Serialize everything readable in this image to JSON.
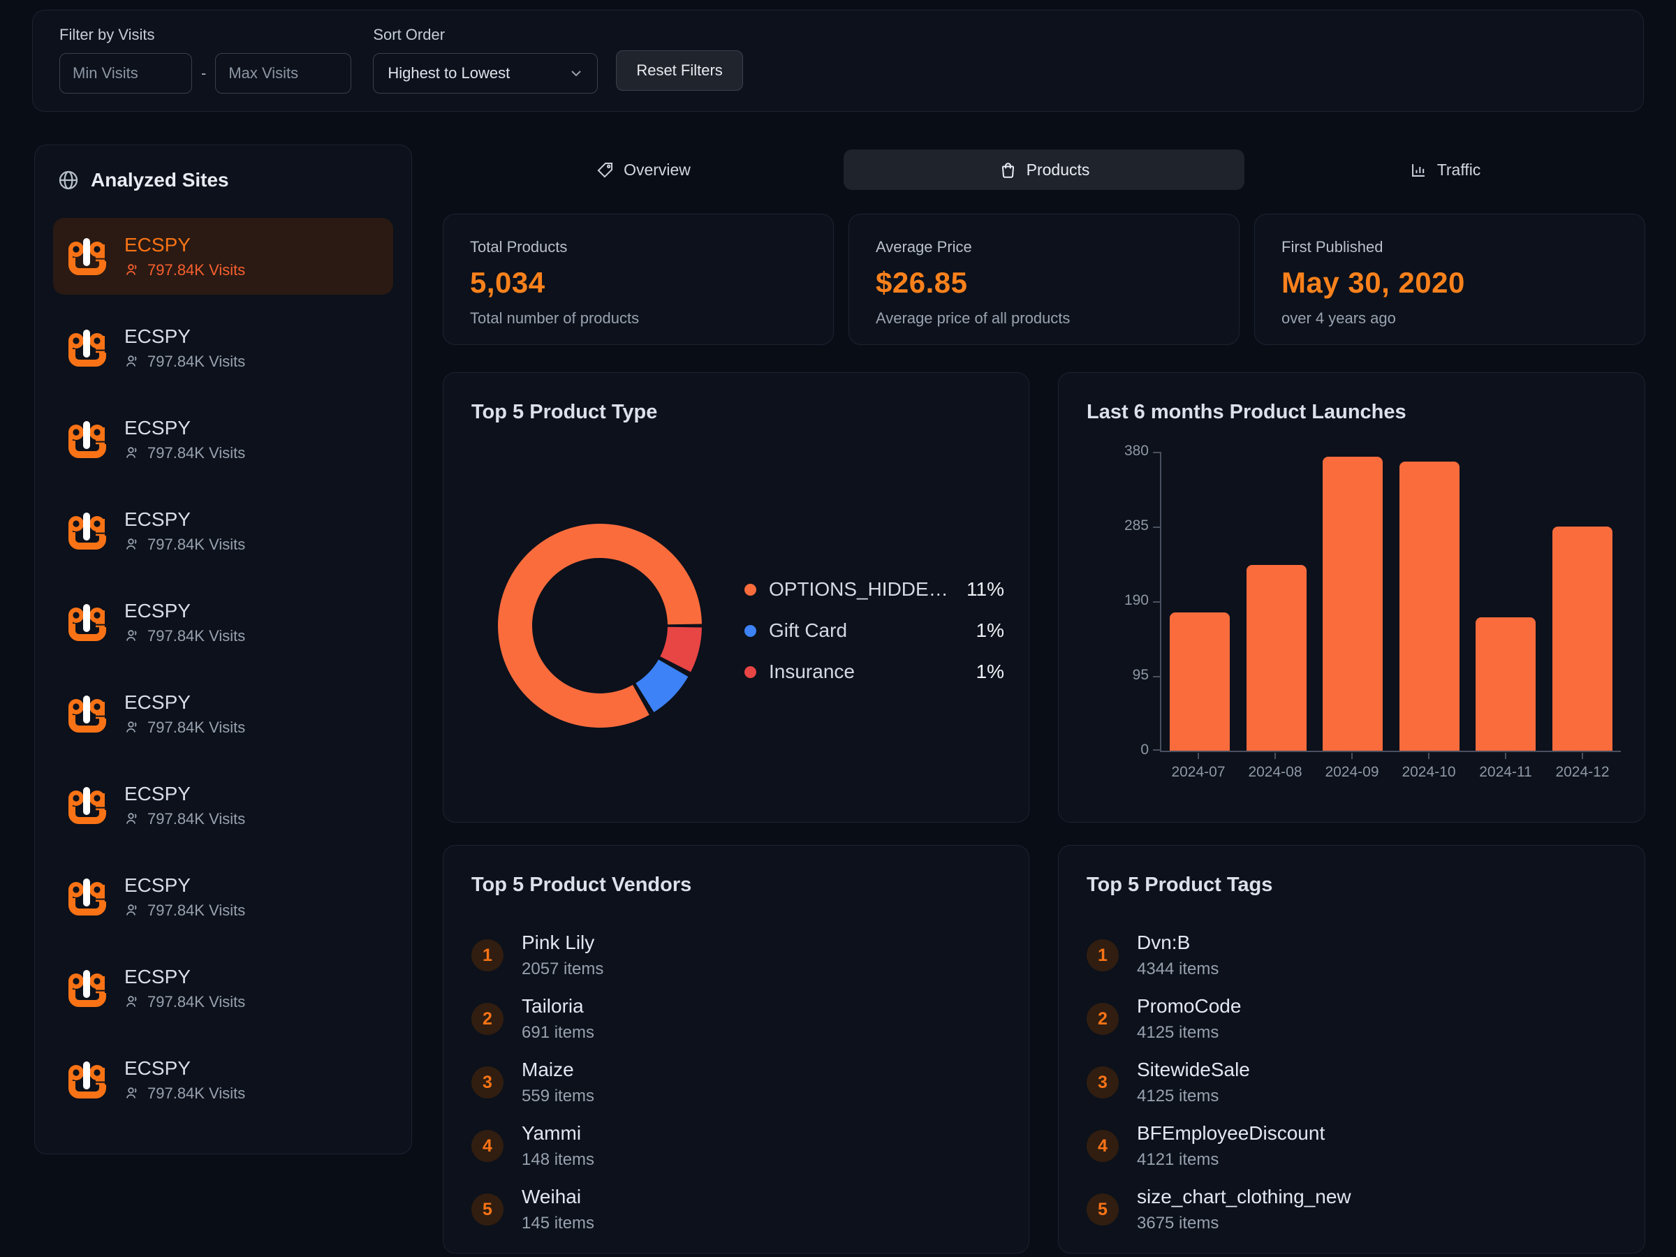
{
  "filter_bar": {
    "filter_label": "Filter by Visits",
    "min_placeholder": "Min Visits",
    "separator": "-",
    "max_placeholder": "Max Visits",
    "sort_label": "Sort Order",
    "sort_value": "Highest to Lowest",
    "reset_button": "Reset Filters"
  },
  "sidebar": {
    "title": "Analyzed Sites",
    "items": [
      {
        "name": "ECSPY",
        "visits": "797.84K Visits",
        "selected": true
      },
      {
        "name": "ECSPY",
        "visits": "797.84K Visits",
        "selected": false
      },
      {
        "name": "ECSPY",
        "visits": "797.84K Visits",
        "selected": false
      },
      {
        "name": "ECSPY",
        "visits": "797.84K Visits",
        "selected": false
      },
      {
        "name": "ECSPY",
        "visits": "797.84K Visits",
        "selected": false
      },
      {
        "name": "ECSPY",
        "visits": "797.84K Visits",
        "selected": false
      },
      {
        "name": "ECSPY",
        "visits": "797.84K Visits",
        "selected": false
      },
      {
        "name": "ECSPY",
        "visits": "797.84K Visits",
        "selected": false
      },
      {
        "name": "ECSPY",
        "visits": "797.84K Visits",
        "selected": false
      },
      {
        "name": "ECSPY",
        "visits": "797.84K Visits",
        "selected": false
      }
    ]
  },
  "tabs": [
    {
      "label": "Overview",
      "icon": "tag-icon",
      "selected": false
    },
    {
      "label": "Products",
      "icon": "shopping-bag-icon",
      "selected": true
    },
    {
      "label": "Traffic",
      "icon": "bar-chart-icon",
      "selected": false
    }
  ],
  "stats": [
    {
      "label": "Total Products",
      "value": "5,034",
      "sub": "Total number of products"
    },
    {
      "label": "Average Price",
      "value": "$26.85",
      "sub": "Average price of all products"
    },
    {
      "label": "First Published",
      "value": "May 30, 2020",
      "sub": "over 4 years ago"
    }
  ],
  "colors": {
    "accent_orange": "#f97316",
    "value_orange": "#f9811c",
    "coral": "#fb6c3d",
    "red": "#e84545",
    "blue": "#3d82f6",
    "page_bg": "#090d15",
    "card_bg": "#0c111b",
    "selected_item_bg": "#2a1a13"
  },
  "chart_data": [
    {
      "type": "pie",
      "title": "Top 5 Product Type",
      "legend_position": "right",
      "slices": [
        {
          "label": "OPTIONS_HIDDEN_...",
          "value_pct": 11,
          "pct_label": "11%",
          "color": "#fb6c3d"
        },
        {
          "label": "Gift Card",
          "value_pct": 1,
          "pct_label": "1%",
          "color": "#3d82f6"
        },
        {
          "label": "Insurance",
          "value_pct": 1,
          "pct_label": "1%",
          "color": "#e84545"
        }
      ],
      "visual_segments": [
        {
          "name": "Insurance",
          "color": "#e84545",
          "start_deg": 91,
          "end_deg": 117
        },
        {
          "name": "Gift Card",
          "color": "#3d82f6",
          "start_deg": 120,
          "end_deg": 148
        },
        {
          "name": "OPTIONS_HIDDEN_...",
          "color": "#fb6c3d",
          "start_deg": 151,
          "end_deg": 449
        }
      ]
    },
    {
      "type": "bar",
      "title": "Last 6 months Product Launches",
      "categories": [
        "2024-07",
        "2024-08",
        "2024-09",
        "2024-10",
        "2024-11",
        "2024-12"
      ],
      "values": [
        176,
        236,
        374,
        368,
        170,
        285
      ],
      "ylim": [
        0,
        380
      ],
      "yticks": [
        0,
        95,
        190,
        285,
        380
      ],
      "bar_color": "#fb6c3d",
      "grid": false
    }
  ],
  "vendors": {
    "title": "Top 5 Product Vendors",
    "items": [
      {
        "rank": "1",
        "name": "Pink Lily",
        "count": "2057 items"
      },
      {
        "rank": "2",
        "name": "Tailoria",
        "count": "691 items"
      },
      {
        "rank": "3",
        "name": "Maize",
        "count": "559 items"
      },
      {
        "rank": "4",
        "name": "Yammi",
        "count": "148 items"
      },
      {
        "rank": "5",
        "name": "Weihai",
        "count": "145 items"
      }
    ]
  },
  "tags": {
    "title": "Top 5 Product Tags",
    "items": [
      {
        "rank": "1",
        "name": "Dvn:B",
        "count": "4344 items"
      },
      {
        "rank": "2",
        "name": "PromoCode",
        "count": "4125 items"
      },
      {
        "rank": "3",
        "name": "SitewideSale",
        "count": "4125 items"
      },
      {
        "rank": "4",
        "name": "BFEmployeeDiscount",
        "count": "4121 items"
      },
      {
        "rank": "5",
        "name": "size_chart_clothing_new",
        "count": "3675 items"
      }
    ]
  }
}
